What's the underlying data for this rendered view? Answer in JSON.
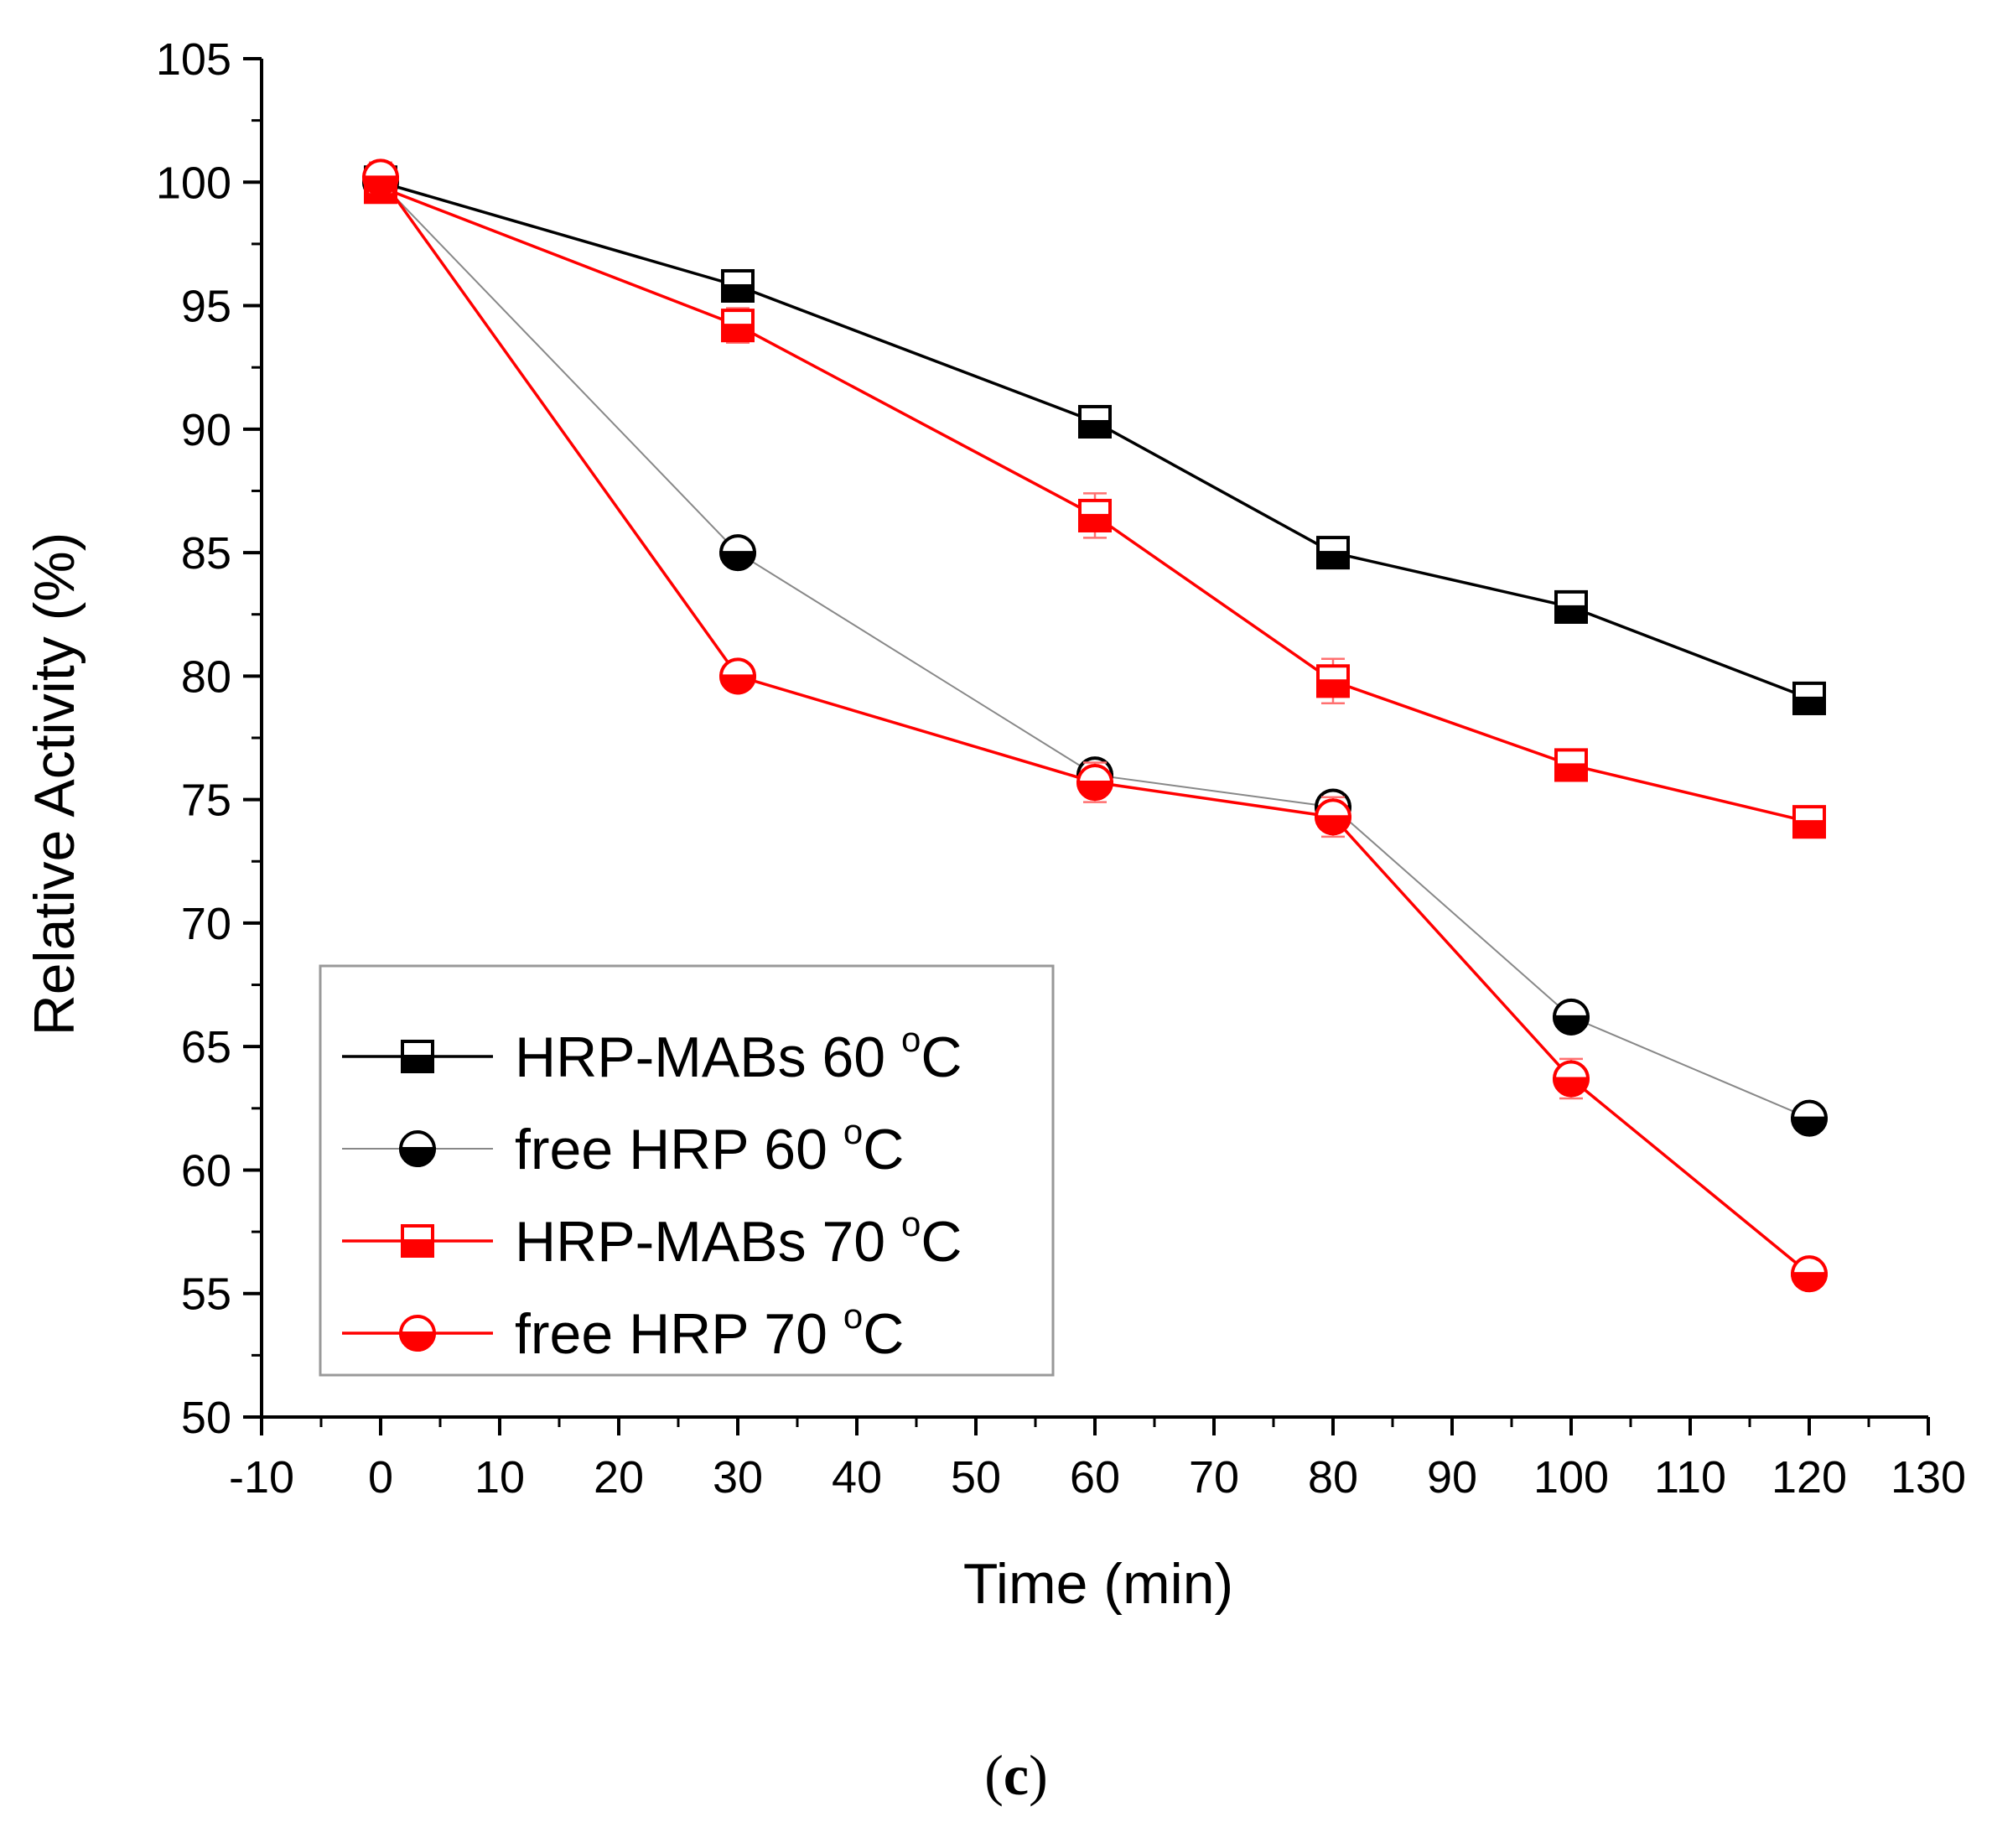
{
  "chart_data": {
    "type": "line",
    "xlabel": "Time (min)",
    "ylabel": "Relative Activity (%)",
    "xlim": [
      -10,
      130
    ],
    "ylim": [
      50,
      105
    ],
    "xticks": [
      -10,
      0,
      10,
      20,
      30,
      40,
      50,
      60,
      70,
      80,
      90,
      100,
      110,
      120,
      130
    ],
    "yticks": [
      50,
      55,
      60,
      65,
      70,
      75,
      80,
      85,
      90,
      95,
      100,
      105
    ],
    "grid": false,
    "legend_position": "bottom-left",
    "x": [
      0,
      30,
      60,
      80,
      100,
      120
    ],
    "series": [
      {
        "name": "HRP-MABs 60",
        "unit": "oC",
        "marker": "half-square",
        "color": "#000000",
        "values": [
          100.0,
          95.8,
          90.3,
          85.0,
          82.8,
          79.1
        ],
        "errors": [
          0.6,
          0.6,
          0.6,
          0.6,
          0.5,
          0.4
        ]
      },
      {
        "name": "free HRP 60",
        "unit": "oC",
        "marker": "half-circle",
        "color": "#000000",
        "values": [
          100.0,
          85.0,
          76.0,
          74.7,
          66.2,
          62.1
        ],
        "errors": [
          0.5,
          0.5,
          0.5,
          0.5,
          0.5,
          0.4
        ]
      },
      {
        "name": "HRP-MABs 70",
        "unit": "oC",
        "marker": "half-square",
        "color": "#ff0000",
        "values": [
          99.8,
          94.2,
          86.5,
          79.8,
          76.4,
          74.1
        ],
        "errors": [
          0.5,
          0.7,
          0.9,
          0.9,
          0.5,
          0.4
        ]
      },
      {
        "name": "free HRP 70",
        "unit": "oC",
        "marker": "half-circle",
        "color": "#ff0000",
        "values": [
          100.2,
          80.0,
          75.7,
          74.3,
          63.7,
          55.8
        ],
        "errors": [
          0.6,
          0.4,
          0.8,
          0.8,
          0.8,
          0.4
        ]
      }
    ]
  },
  "caption": {
    "open": "(",
    "letter": "c",
    "close": ")"
  }
}
